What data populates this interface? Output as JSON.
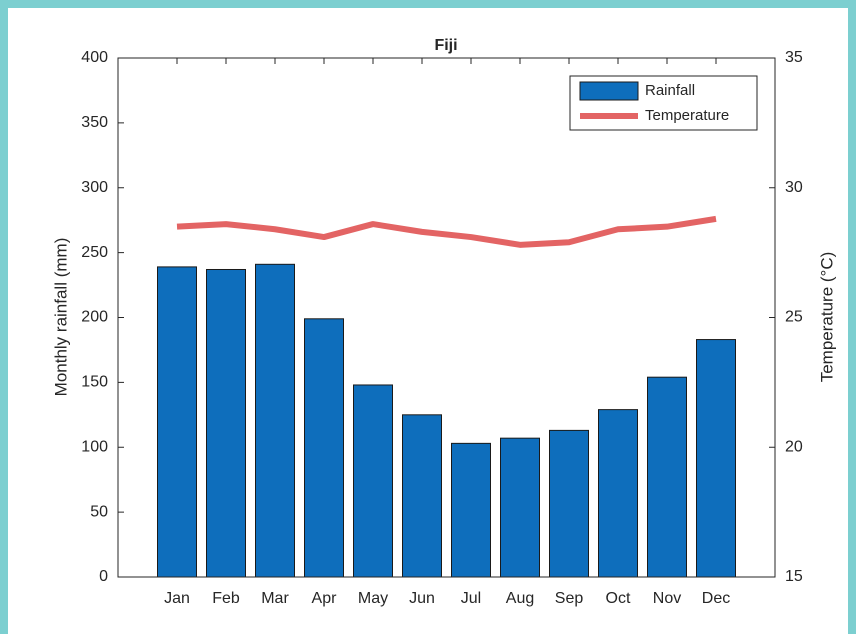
{
  "chart_data": {
    "type": "bar",
    "title": "Fiji",
    "categories": [
      "Jan",
      "Feb",
      "Mar",
      "Apr",
      "May",
      "Jun",
      "Jul",
      "Aug",
      "Sep",
      "Oct",
      "Nov",
      "Dec"
    ],
    "series": [
      {
        "name": "Rainfall",
        "type": "bar",
        "color": "#0e6ebc",
        "values": [
          239,
          237,
          241,
          199,
          148,
          125,
          103,
          107,
          113,
          129,
          154,
          183
        ]
      },
      {
        "name": "Temperature",
        "type": "line",
        "axis": "y2",
        "color": "#e36464",
        "values": [
          28.5,
          28.6,
          28.4,
          28.1,
          28.6,
          28.3,
          28.1,
          27.8,
          27.9,
          28.4,
          28.5,
          28.8
        ]
      }
    ],
    "ylabel": "Monthly rainfall (mm)",
    "y2label": "Temperature (°C)",
    "ylim": [
      0,
      400
    ],
    "yticks": [
      0,
      50,
      100,
      150,
      200,
      250,
      300,
      350,
      400
    ],
    "y2lim": [
      15,
      35
    ],
    "y2ticks": [
      15,
      20,
      25,
      30,
      35
    ],
    "legend": "upper right"
  }
}
